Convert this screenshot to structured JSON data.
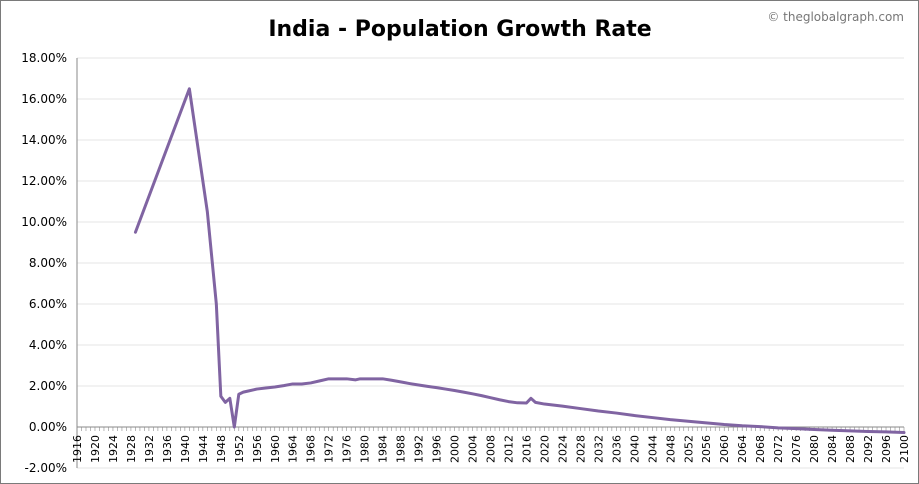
{
  "chart_data": {
    "type": "line",
    "title": "India - Population Growth Rate",
    "watermark": "© theglobalgraph.com",
    "xlabel": "",
    "ylabel": "",
    "xlim": [
      1916,
      2100
    ],
    "ylim": [
      -0.02,
      0.18
    ],
    "x_ticks": [
      1916,
      1920,
      1924,
      1928,
      1932,
      1936,
      1940,
      1944,
      1948,
      1952,
      1956,
      1960,
      1964,
      1968,
      1972,
      1976,
      1980,
      1984,
      1988,
      1992,
      1996,
      2000,
      2004,
      2008,
      2012,
      2016,
      2020,
      2024,
      2028,
      2032,
      2036,
      2040,
      2044,
      2048,
      2052,
      2056,
      2060,
      2064,
      2068,
      2072,
      2076,
      2080,
      2084,
      2088,
      2092,
      2096,
      2100
    ],
    "y_ticks": [
      "-2.00%",
      "0.00%",
      "2.00%",
      "4.00%",
      "6.00%",
      "8.00%",
      "10.00%",
      "12.00%",
      "14.00%",
      "16.00%",
      "18.00%"
    ],
    "y_tick_values": [
      -0.02,
      0,
      0.02,
      0.04,
      0.06,
      0.08,
      0.1,
      0.12,
      0.14,
      0.16,
      0.18
    ],
    "grid": true,
    "series": [
      {
        "name": "Population Growth Rate",
        "color": "#8064a2",
        "x": [
          1929,
          1941,
          1945,
          1947,
          1948,
          1949,
          1950,
          1951,
          1952,
          1953,
          1954,
          1956,
          1958,
          1960,
          1962,
          1964,
          1966,
          1968,
          1970,
          1972,
          1974,
          1976,
          1978,
          1979,
          1980,
          1982,
          1984,
          1986,
          1988,
          1990,
          1992,
          1994,
          1996,
          1998,
          2000,
          2002,
          2004,
          2006,
          2008,
          2010,
          2012,
          2014,
          2016,
          2017,
          2018,
          2020,
          2024,
          2028,
          2032,
          2036,
          2040,
          2044,
          2048,
          2052,
          2056,
          2060,
          2064,
          2068,
          2072,
          2076,
          2080,
          2084,
          2088,
          2092,
          2096,
          2100
        ],
        "values": [
          0.095,
          0.165,
          0.105,
          0.06,
          0.015,
          0.012,
          0.014,
          0.0,
          0.016,
          0.017,
          0.0175,
          0.0185,
          0.019,
          0.0195,
          0.0202,
          0.021,
          0.021,
          0.0215,
          0.0225,
          0.0235,
          0.0235,
          0.0235,
          0.023,
          0.0235,
          0.0235,
          0.0235,
          0.0235,
          0.0228,
          0.022,
          0.0212,
          0.0205,
          0.0198,
          0.0192,
          0.0185,
          0.0178,
          0.017,
          0.0162,
          0.0153,
          0.0143,
          0.0133,
          0.0124,
          0.0118,
          0.0117,
          0.014,
          0.012,
          0.0112,
          0.0102,
          0.009,
          0.0078,
          0.0068,
          0.0056,
          0.0046,
          0.0036,
          0.0028,
          0.002,
          0.0012,
          0.0006,
          0.0002,
          -0.0004,
          -0.0008,
          -0.0012,
          -0.0016,
          -0.0019,
          -0.0022,
          -0.0024,
          -0.0027
        ]
      }
    ]
  }
}
